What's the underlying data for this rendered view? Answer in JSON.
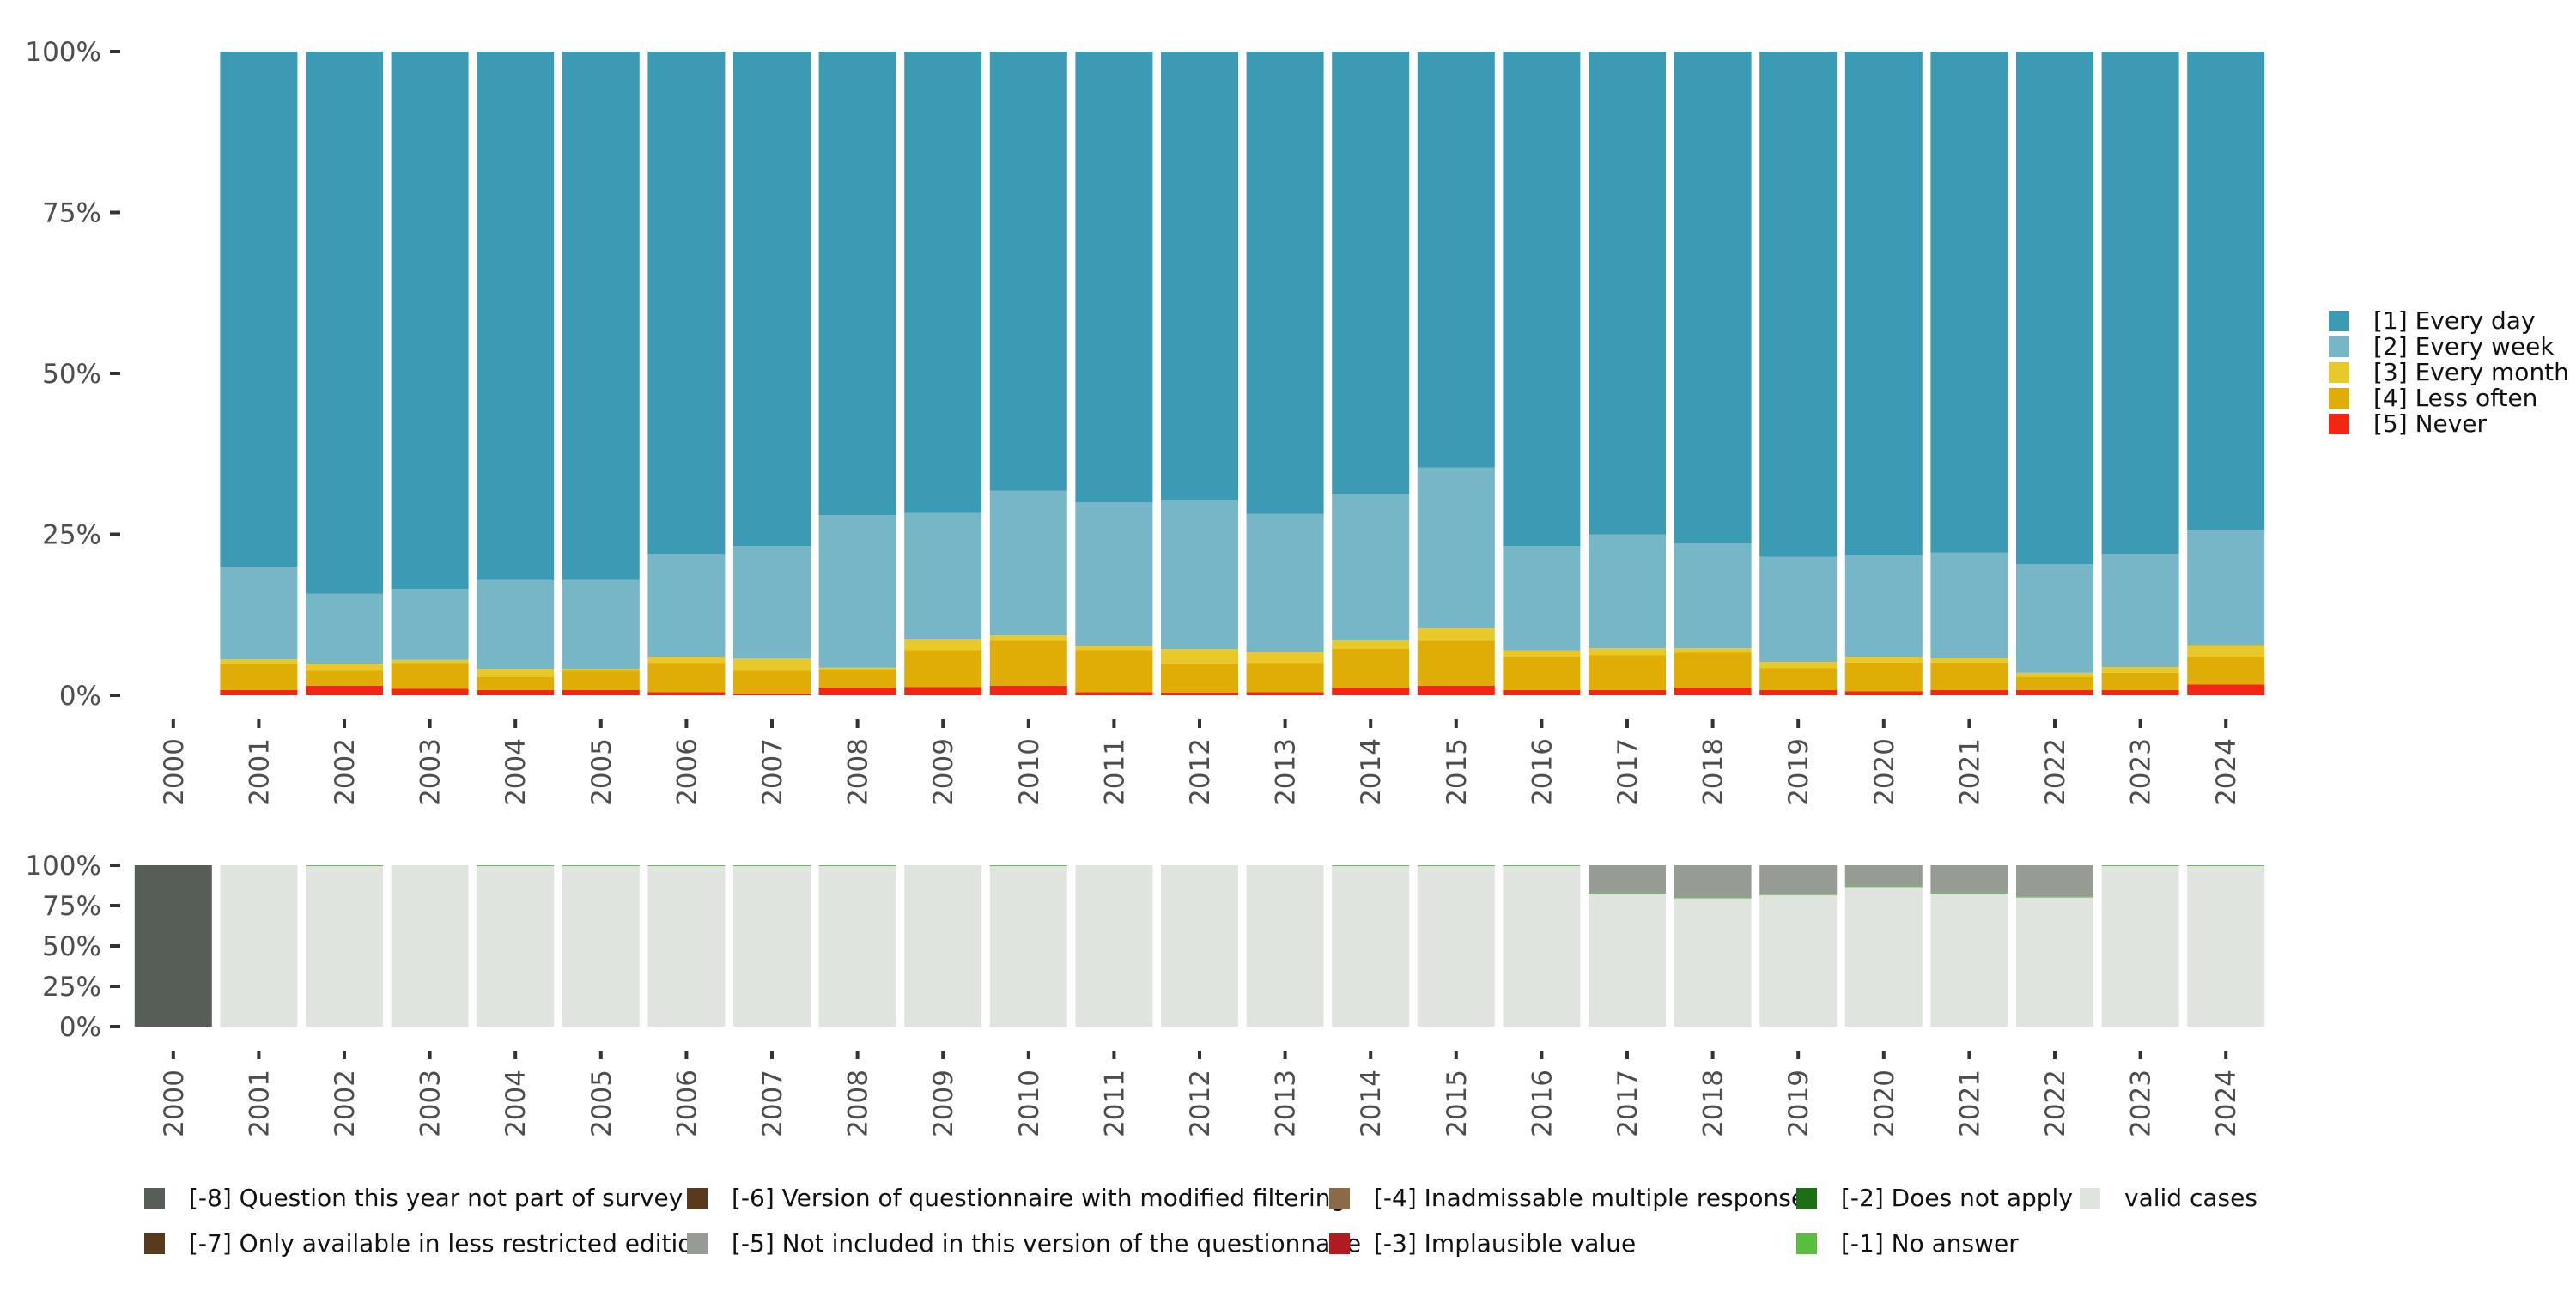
{
  "colors": {
    "every_day": "#3b9ab4",
    "every_week": "#76b6c6",
    "every_month": "#e9c82a",
    "less_often": "#dfad05",
    "never": "#f22613",
    "missing_8": "#575e58",
    "missing_7": "#5a3a1c",
    "missing_6": "#5a3a1c",
    "missing_5": "#969c94",
    "missing_4": "#8b6a47",
    "missing_3": "#b11b20",
    "missing_2": "#1e6e16",
    "missing_1": "#59bd3e",
    "valid": "#e0e4df",
    "axis_text": "#4d4d4d"
  },
  "chart_data": [
    {
      "name": "main",
      "type": "bar",
      "stacked": true,
      "title": "",
      "xlabel": "",
      "ylabel": "",
      "ylim": [
        0,
        100
      ],
      "y_ticks": [
        0,
        25,
        50,
        75,
        100
      ],
      "y_tick_labels": [
        "0%",
        "25%",
        "50%",
        "75%",
        "100%"
      ],
      "categories": [
        "2000",
        "2001",
        "2002",
        "2003",
        "2004",
        "2005",
        "2006",
        "2007",
        "2008",
        "2009",
        "2010",
        "2011",
        "2012",
        "2013",
        "2014",
        "2015",
        "2016",
        "2017",
        "2018",
        "2019",
        "2020",
        "2021",
        "2022",
        "2023",
        "2024"
      ],
      "legend_position": "right",
      "series": [
        {
          "name": "[5] Never",
          "color_key": "never",
          "values": [
            null,
            0.8,
            1.5,
            1.0,
            0.8,
            0.8,
            0.5,
            0.3,
            1.2,
            1.3,
            1.5,
            0.5,
            0.4,
            0.5,
            1.2,
            1.5,
            0.8,
            0.8,
            1.2,
            0.8,
            0.6,
            0.8,
            0.8,
            0.8,
            1.7
          ]
        },
        {
          "name": "[4] Less often",
          "color_key": "less_often",
          "values": [
            null,
            4.0,
            2.3,
            4.0,
            2.0,
            3.0,
            4.5,
            3.5,
            2.8,
            5.7,
            7.0,
            6.5,
            4.5,
            4.5,
            6.0,
            7.0,
            5.2,
            5.4,
            5.4,
            3.4,
            4.5,
            4.3,
            2.0,
            2.7,
            4.3
          ]
        },
        {
          "name": "[3] Every month",
          "color_key": "every_month",
          "values": [
            null,
            0.8,
            1.1,
            0.5,
            1.3,
            0.3,
            1.0,
            1.9,
            0.3,
            1.7,
            0.8,
            0.7,
            2.3,
            1.7,
            1.3,
            1.9,
            1.0,
            1.1,
            0.7,
            1.0,
            0.9,
            0.7,
            0.7,
            0.9,
            1.8
          ]
        },
        {
          "name": "[2] Every week",
          "color_key": "every_week",
          "values": [
            null,
            14.4,
            10.9,
            11.0,
            13.8,
            13.8,
            16.0,
            17.5,
            23.7,
            19.6,
            22.5,
            22.3,
            23.1,
            21.5,
            22.7,
            25.0,
            16.2,
            17.7,
            16.3,
            16.3,
            15.7,
            16.4,
            16.9,
            17.6,
            17.9
          ]
        },
        {
          "name": "[1] Every day",
          "color_key": "every_day",
          "values": [
            null,
            80.0,
            84.2,
            83.5,
            82.1,
            82.1,
            78.0,
            76.8,
            72.0,
            71.7,
            68.2,
            70.0,
            69.7,
            71.8,
            68.8,
            64.6,
            76.8,
            75.0,
            76.4,
            78.5,
            78.3,
            77.8,
            79.6,
            78.0,
            74.3
          ]
        }
      ],
      "legend_order": [
        "[1] Every day",
        "[2] Every week",
        "[3] Every month",
        "[4] Less often",
        "[5] Never"
      ]
    },
    {
      "name": "missing",
      "type": "bar",
      "stacked": true,
      "title": "",
      "xlabel": "",
      "ylabel": "",
      "ylim": [
        0,
        100
      ],
      "y_ticks": [
        0,
        25,
        50,
        75,
        100
      ],
      "y_tick_labels": [
        "0%",
        "25%",
        "50%",
        "75%",
        "100%"
      ],
      "categories": [
        "2000",
        "2001",
        "2002",
        "2003",
        "2004",
        "2005",
        "2006",
        "2007",
        "2008",
        "2009",
        "2010",
        "2011",
        "2012",
        "2013",
        "2014",
        "2015",
        "2016",
        "2017",
        "2018",
        "2019",
        "2020",
        "2021",
        "2022",
        "2023",
        "2024"
      ],
      "legend_position": "bottom",
      "series": [
        {
          "name": "valid cases",
          "color_key": "valid",
          "values": [
            0,
            100,
            99.5,
            100,
            99.5,
            99.5,
            99.5,
            99.5,
            99.5,
            100,
            99.5,
            100,
            100,
            100,
            99.5,
            99.5,
            99.5,
            82.5,
            79.5,
            81.5,
            86.5,
            82.5,
            80,
            99.5,
            99.5
          ]
        },
        {
          "name": "[-1] No answer",
          "color_key": "missing_1",
          "values": [
            0,
            0,
            0.5,
            0,
            0.5,
            0.5,
            0.5,
            0.5,
            0.5,
            0,
            0.5,
            0,
            0,
            0,
            0.5,
            0.5,
            0.5,
            0.5,
            0.5,
            0.5,
            0.5,
            0.5,
            0.5,
            0.5,
            0.5
          ]
        },
        {
          "name": "[-5] Not included in this version of the questionnaire",
          "color_key": "missing_5",
          "values": [
            0,
            0,
            0,
            0,
            0,
            0,
            0,
            0,
            0,
            0,
            0,
            0,
            0,
            0,
            0,
            0,
            0,
            17,
            20,
            18,
            13,
            17,
            19.5,
            0,
            0
          ]
        },
        {
          "name": "[-8] Question this year not part of survey",
          "color_key": "missing_8",
          "values": [
            100,
            0,
            0,
            0,
            0,
            0,
            0,
            0,
            0,
            0,
            0,
            0,
            0,
            0,
            0,
            0,
            0,
            0,
            0,
            0,
            0,
            0,
            0,
            0,
            0
          ]
        }
      ],
      "legend_rows": [
        [
          {
            "name": "[-8] Question this year not part of survey",
            "color_key": "missing_8"
          },
          {
            "name": "[-6] Version of questionnaire with modified filtering",
            "color_key": "missing_6"
          },
          {
            "name": "[-4] Inadmissable multiple response",
            "color_key": "missing_4"
          },
          {
            "name": "[-2] Does not apply",
            "color_key": "missing_2"
          },
          {
            "name": "valid cases",
            "color_key": "valid"
          }
        ],
        [
          {
            "name": "[-7] Only available in less restricted edition",
            "color_key": "missing_7"
          },
          {
            "name": "[-5] Not included in this version of the questionnaire",
            "color_key": "missing_5"
          },
          {
            "name": "[-3] Implausible value",
            "color_key": "missing_3"
          },
          {
            "name": "[-1] No answer",
            "color_key": "missing_1"
          }
        ]
      ]
    }
  ]
}
